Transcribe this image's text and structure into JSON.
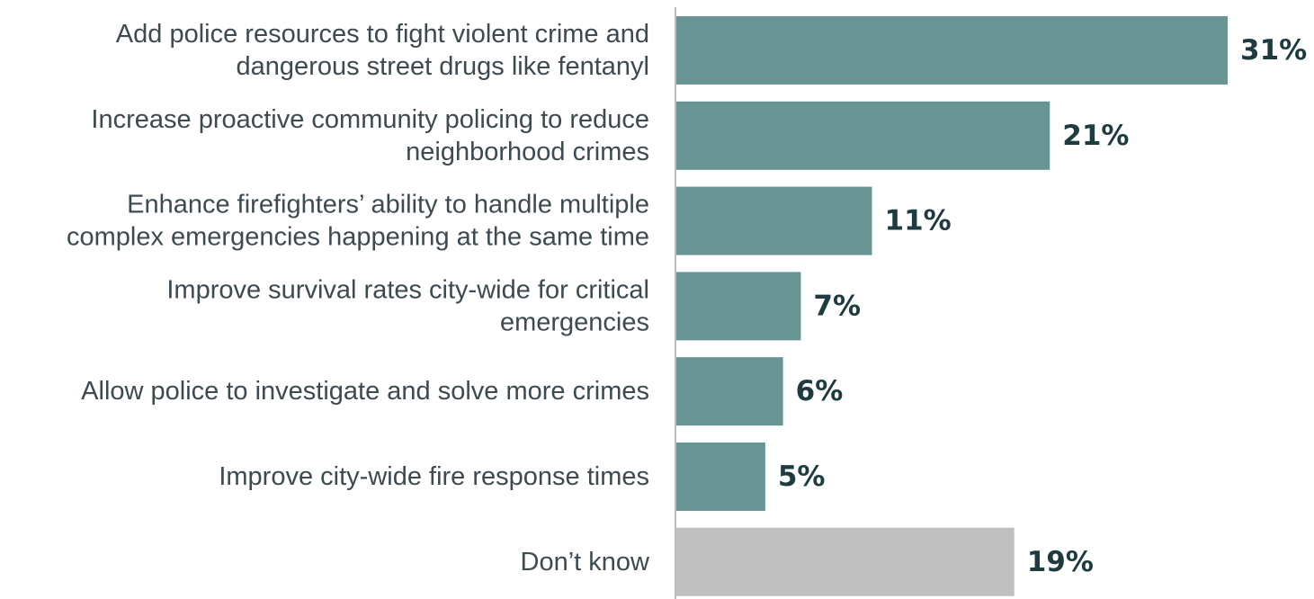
{
  "chart_data": {
    "type": "bar",
    "orientation": "horizontal",
    "categories": [
      [
        "Add police resources to fight violent crime and",
        "dangerous street drugs like fentanyl"
      ],
      [
        "Increase proactive community policing to reduce",
        "neighborhood crimes"
      ],
      [
        "Enhance firefighters’ ability to handle multiple",
        "complex emergencies happening at the same time"
      ],
      [
        "Improve survival rates city-wide for critical",
        "emergencies"
      ],
      [
        "Allow police to investigate and solve more crimes"
      ],
      [
        "Improve city-wide fire response times"
      ],
      [
        "Don’t know"
      ]
    ],
    "values": [
      31,
      21,
      11,
      7,
      6,
      5,
      19
    ],
    "value_labels": [
      "31%",
      "21%",
      "11%",
      "7%",
      "6%",
      "5%",
      "19%"
    ],
    "bar_colors": [
      "#689494",
      "#689494",
      "#689494",
      "#689494",
      "#689494",
      "#689494",
      "#bfbfbf"
    ],
    "value_unit": "%",
    "xlim": [
      0,
      31
    ],
    "grid": false,
    "title": "",
    "xlabel": "",
    "ylabel": ""
  }
}
